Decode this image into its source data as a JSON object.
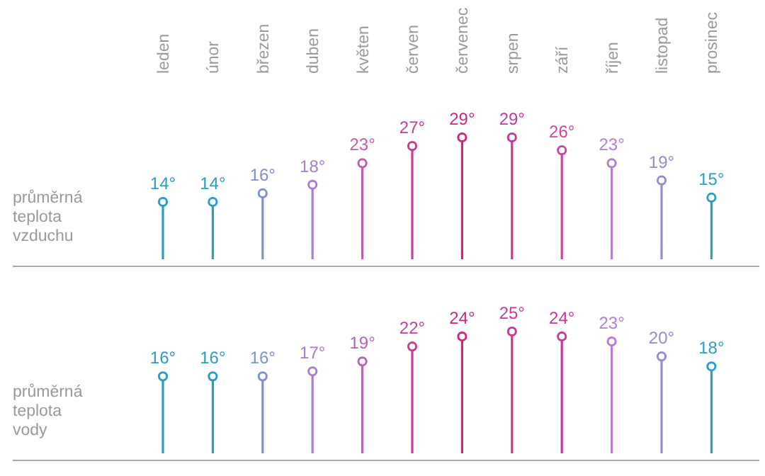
{
  "chart_data": [
    {
      "type": "lollipop",
      "ylabel": "průměrná teplota vzduchu",
      "categories": [
        "leden",
        "únor",
        "březen",
        "duben",
        "květen",
        "červen",
        "červenec",
        "srpen",
        "září",
        "říjen",
        "listopad",
        "prosinec"
      ],
      "values": [
        14,
        14,
        16,
        18,
        23,
        27,
        29,
        29,
        26,
        23,
        19,
        15
      ],
      "value_labels": [
        "14°",
        "14°",
        "16°",
        "18°",
        "23°",
        "27°",
        "29°",
        "29°",
        "26°",
        "23°",
        "19°",
        "15°"
      ],
      "colors": [
        "#2a9dc4",
        "#2a9dc4",
        "#7f8fcf",
        "#a77fcc",
        "#c45aaf",
        "#c83c98",
        "#d0267f",
        "#c8389a",
        "#c84aa0",
        "#b67ccf",
        "#8e8fd0",
        "#2aa0c8"
      ],
      "tick_labels": "x",
      "marker": "circle"
    },
    {
      "type": "lollipop",
      "ylabel": "průměrná teplota vody",
      "categories": [
        null,
        null,
        null,
        null,
        null,
        null,
        null,
        null,
        null,
        null,
        null,
        null
      ],
      "values": [
        16,
        16,
        16,
        17,
        19,
        22,
        24,
        25,
        24,
        23,
        20,
        18
      ],
      "value_labels": [
        "16°",
        "16°",
        "16°",
        "17°",
        "19°",
        "22°",
        "24°",
        "25°",
        "24°",
        "23°",
        "20°",
        "18°"
      ],
      "colors": [
        "#2a9dc4",
        "#2a9dc4",
        "#7f8fcf",
        "#a77fcc",
        "#b763b8",
        "#c83c98",
        "#d0267f",
        "#c8389a",
        "#c8389a",
        "#b67ccf",
        "#8e8fd0",
        "#2aa0c8"
      ],
      "tick_labels": false,
      "marker": "circle"
    }
  ]
}
